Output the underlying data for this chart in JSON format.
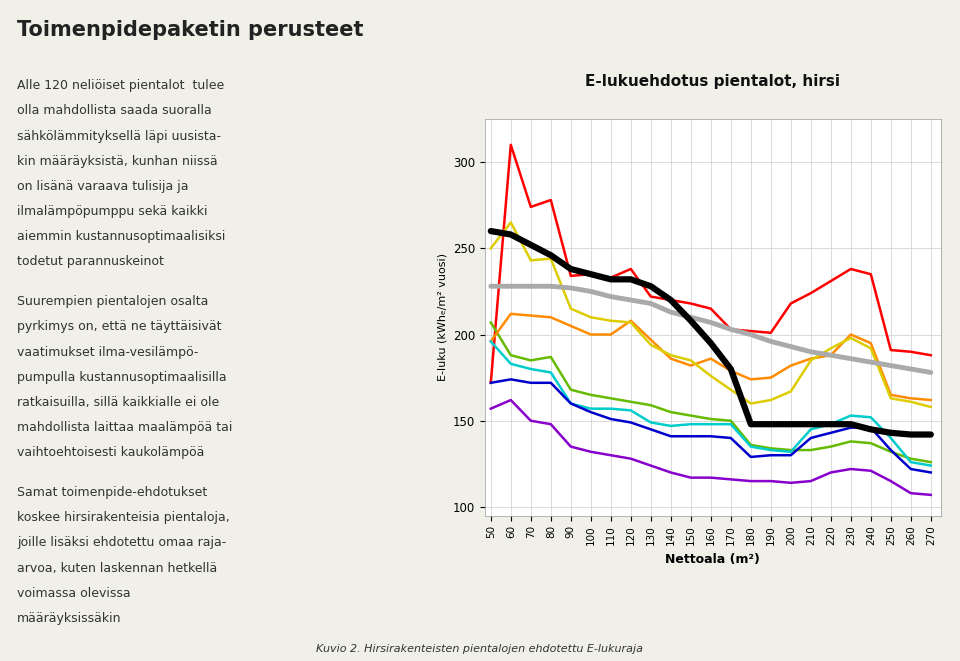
{
  "title": "E-lukuehdotus pientalot, hirsi",
  "xlabel": "Nettoala (m²)",
  "ylabel": "E-luku (kWhₑ/m² vuosi)",
  "x": [
    50,
    60,
    70,
    80,
    90,
    100,
    110,
    120,
    130,
    140,
    150,
    160,
    170,
    180,
    190,
    200,
    210,
    220,
    230,
    240,
    250,
    260,
    270
  ],
  "nykyinen_e_lukuraja": [
    228,
    228,
    228,
    228,
    227,
    225,
    222,
    220,
    218,
    213,
    210,
    207,
    203,
    200,
    196,
    193,
    190,
    188,
    186,
    184,
    182,
    180,
    178
  ],
  "uusi_e_lukuraja": [
    260,
    258,
    252,
    246,
    238,
    235,
    232,
    232,
    228,
    220,
    208,
    195,
    180,
    148,
    148,
    148,
    148,
    148,
    148,
    145,
    143,
    142,
    142
  ],
  "sahkolammitys": [
    172,
    310,
    274,
    278,
    234,
    235,
    233,
    238,
    222,
    220,
    218,
    215,
    203,
    202,
    201,
    218,
    224,
    231,
    238,
    235,
    191,
    190,
    188
  ],
  "ilma_vesilampopumppu": [
    207,
    188,
    185,
    187,
    168,
    165,
    163,
    161,
    159,
    155,
    153,
    151,
    150,
    136,
    134,
    133,
    133,
    135,
    138,
    137,
    132,
    128,
    126
  ],
  "olju": [
    196,
    212,
    211,
    210,
    205,
    200,
    200,
    208,
    197,
    186,
    182,
    186,
    179,
    174,
    175,
    182,
    186,
    188,
    200,
    195,
    165,
    163,
    162
  ],
  "poistoilmalampopumppu": [
    250,
    265,
    243,
    244,
    215,
    210,
    208,
    207,
    194,
    188,
    185,
    176,
    168,
    160,
    162,
    167,
    185,
    192,
    198,
    192,
    163,
    161,
    158
  ],
  "kaukolampö": [
    196,
    183,
    180,
    178,
    160,
    157,
    157,
    156,
    149,
    147,
    148,
    148,
    148,
    135,
    133,
    132,
    145,
    148,
    153,
    152,
    140,
    126,
    124
  ],
  "puukattila": [
    172,
    174,
    172,
    172,
    160,
    155,
    151,
    149,
    145,
    141,
    141,
    141,
    140,
    129,
    130,
    130,
    140,
    143,
    146,
    146,
    133,
    122,
    120
  ],
  "maalampopumppu": [
    157,
    162,
    150,
    148,
    135,
    132,
    130,
    128,
    124,
    120,
    117,
    117,
    116,
    115,
    115,
    114,
    115,
    120,
    122,
    121,
    115,
    108,
    107
  ],
  "colors": {
    "nykyinen": "#aaaaaa",
    "uusi": "#000000",
    "sahko": "#ff0000",
    "ilma": "#66bb00",
    "olju": "#ff8c00",
    "poisto": "#ddcc00",
    "kauko": "#00cccc",
    "puu": "#0000cc",
    "maala": "#8800cc"
  },
  "ylim": [
    95,
    325
  ],
  "xlim": [
    47,
    275
  ],
  "page_title": "Toimenpidepaketin perusteet",
  "left_text": [
    "Alle 120 neliöiset pientalot  tulee",
    "olla mahdollista saada suoralla",
    "sähkölämmityksellä läpi uusista-",
    "kin määräyksistä, kunhan niissä",
    "on lisänä varaava tulisija ja",
    "ilmalämpöpumppu sekä kaikki",
    "aiemmin kustannusoptimaalisiksi",
    "todetut parannuskeinot",
    "",
    "Suurempien pientalojen osalta",
    "pyrkimys on, että ne täyttäisivät",
    "vaatimukset ilma-vesilämpö-",
    "pumpulla kustannusoptimaalisilla",
    "ratkaisuilla, sillä kaikkialle ei ole",
    "mahdollista laittaa maalämpöä tai",
    "vaihtoehtoisesti kaukolämpöä",
    "",
    "Samat toimenpide-ehdotukset",
    "koskee hirsirakenteisia pientaloja,",
    "joille lisäksi ehdotettu omaa raja-",
    "arvoa, kuten laskennan hetkellä",
    "voimassa olevissa",
    "määräyksissäkin"
  ],
  "caption": "Kuvio 2. Hirsirakenteisten pientalojen ehdotettu E-lukuraja",
  "bg_color": "#f0f0e8",
  "chart_bg": "#ffffff",
  "green_stripe_color": "#4a7c4e"
}
